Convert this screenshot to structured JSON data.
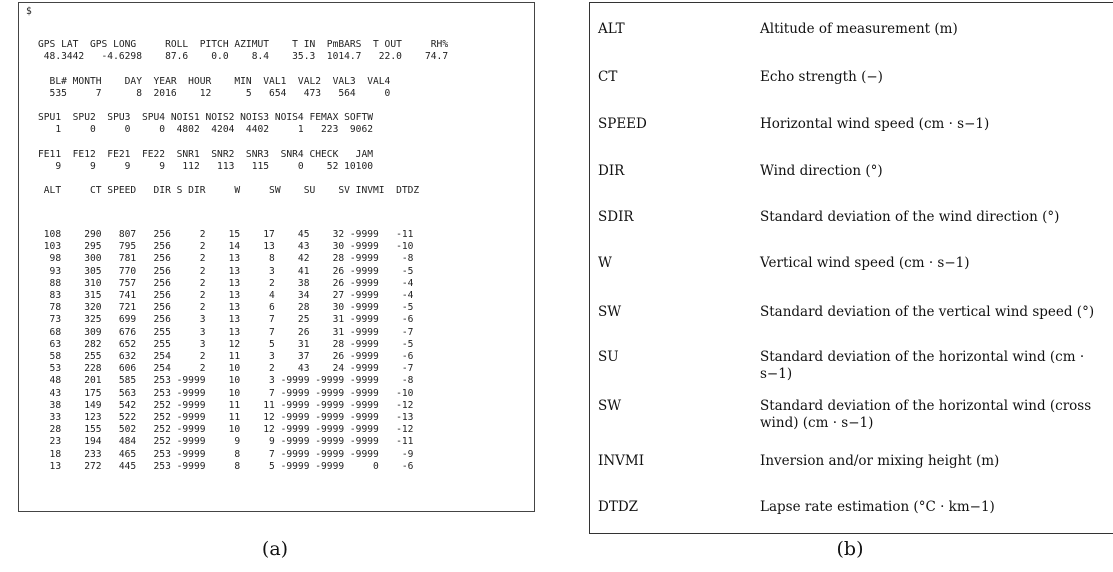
{
  "panel_a": {
    "dollar": "$",
    "header_lines": [
      "GPS LAT  GPS LONG     ROLL  PITCH AZIMUT    T IN  PmBARS  T OUT     RH%",
      " 48.3442   -4.6298    87.6    0.0    8.4    35.3  1014.7   22.0    74.7",
      "",
      "  BL# MONTH    DAY  YEAR  HOUR    MIN  VAL1  VAL2  VAL3  VAL4",
      "  535     7      8  2016    12      5   654   473   564     0",
      "",
      "SPU1  SPU2  SPU3  SPU4 NOIS1 NOIS2 NOIS3 NOIS4 FEMAX SOFTW",
      "   1     0     0     0  4802  4204  4402     1   223  9062",
      "",
      "FE11  FE12  FE21  FE22  SNR1  SNR2  SNR3  SNR4 CHECK   JAM",
      "   9     9     9     9   112   113   115     0    52 10100",
      "",
      " ALT     CT SPEED   DIR S DIR     W     SW    SU    SV INVMI  DTDZ",
      ""
    ],
    "data_rows": [
      " 108    290   807   256     2    15    17    45    32 -9999   -11",
      " 103    295   795   256     2    14    13    43    30 -9999   -10",
      "  98    300   781   256     2    13     8    42    28 -9999    -8",
      "  93    305   770   256     2    13     3    41    26 -9999    -5",
      "  88    310   757   256     2    13     2    38    26 -9999    -4",
      "  83    315   741   256     2    13     4    34    27 -9999    -4",
      "  78    320   721   256     2    13     6    28    30 -9999    -5",
      "  73    325   699   256     3    13     7    25    31 -9999    -6",
      "  68    309   676   255     3    13     7    26    31 -9999    -7",
      "  63    282   652   255     3    12     5    31    28 -9999    -5",
      "  58    255   632   254     2    11     3    37    26 -9999    -6",
      "  53    228   606   254     2    10     2    43    24 -9999    -7",
      "  48    201   585   253 -9999    10     3 -9999 -9999 -9999    -8",
      "  43    175   563   253 -9999    10     7 -9999 -9999 -9999   -10",
      "  38    149   542   252 -9999    11    11 -9999 -9999 -9999   -12",
      "  33    123   522   252 -9999    11    12 -9999 -9999 -9999   -13",
      "  28    155   502   252 -9999    10    12 -9999 -9999 -9999   -12",
      "  23    194   484   252 -9999     9     9 -9999 -9999 -9999   -11",
      "  18    233   465   253 -9999     8     7 -9999 -9999 -9999    -9",
      "  13    272   445   253 -9999     8     5 -9999 -9999     0    -6"
    ],
    "caption": "(a)"
  },
  "panel_b": {
    "rows": [
      {
        "term": "ALT",
        "desc": "Altitude of measurement (m)"
      },
      {
        "term": "CT",
        "desc": "Echo strength (−)"
      },
      {
        "term": "SPEED",
        "desc": "Horizontal wind speed (cm · s−1)"
      },
      {
        "term": "DIR",
        "desc": "Wind direction (°)"
      },
      {
        "term": "SDIR",
        "desc": "Standard deviation of the wind direction (°)"
      },
      {
        "term": "W",
        "desc": "Vertical wind speed (cm · s−1)"
      },
      {
        "term": "SW",
        "desc": "Standard deviation of the vertical wind speed (°)"
      },
      {
        "term": "SU",
        "desc": "Standard deviation of the horizontal wind (cm · s−1)"
      },
      {
        "term": "SW",
        "desc": "Standard deviation of the horizontal wind (cross wind) (cm · s−1)"
      },
      {
        "term": "INVMI",
        "desc": "Inversion and/or mixing height (m)"
      },
      {
        "term": "DTDZ",
        "desc": "Lapse rate estimation (°C · km−1)"
      }
    ],
    "caption": "(b)"
  }
}
